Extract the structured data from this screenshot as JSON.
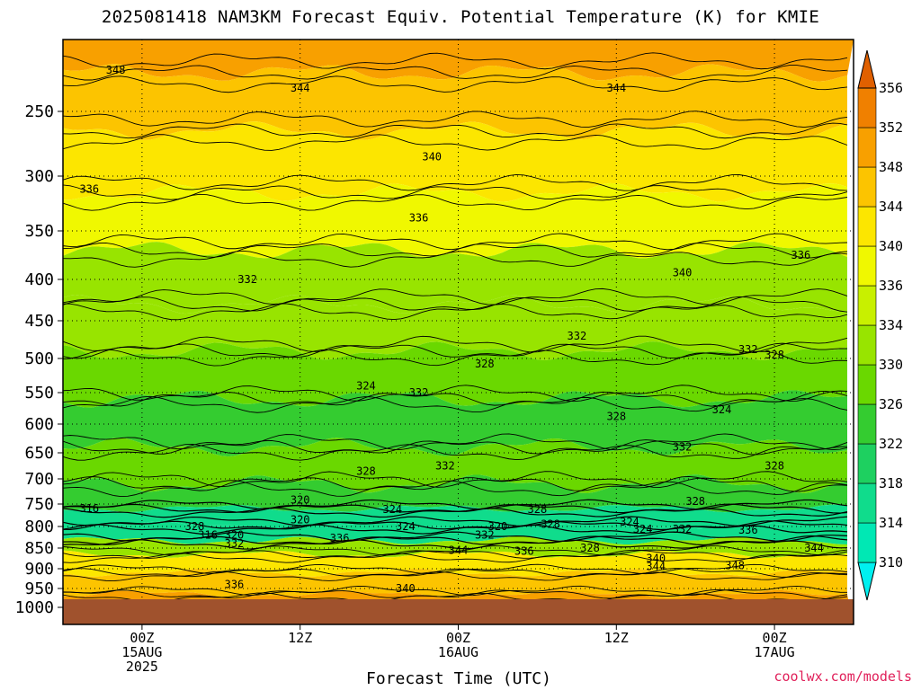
{
  "title": "2025081418 NAM3KM Forecast Equiv. Potential Temperature (K) for KMIE",
  "credit": "coolwx.com/models",
  "chart_data": {
    "type": "heatmap",
    "title": "2025081418 NAM3KM Forecast Equiv. Potential Temperature (K) for KMIE",
    "xlabel": "Forecast Time (UTC)",
    "ylabel": "",
    "y_scale": "pressure (mb), top 200, bottom 1000",
    "y_ticks": [
      250,
      300,
      350,
      400,
      450,
      500,
      550,
      600,
      650,
      700,
      750,
      800,
      850,
      900,
      950,
      1000
    ],
    "x_ticks": [
      {
        "hour": 6,
        "lines": [
          "00Z",
          "15AUG",
          "2025"
        ]
      },
      {
        "hour": 18,
        "lines": [
          "12Z"
        ]
      },
      {
        "hour": 30,
        "lines": [
          "00Z",
          "16AUG"
        ]
      },
      {
        "hour": 42,
        "lines": [
          "12Z"
        ]
      },
      {
        "hour": 54,
        "lines": [
          "00Z",
          "17AUG"
        ]
      }
    ],
    "x_range_hours": [
      0,
      60
    ],
    "colorbar": {
      "levels": [
        310,
        314,
        318,
        322,
        326,
        330,
        334,
        336,
        340,
        344,
        348,
        352,
        356
      ],
      "colors": [
        "#00f0f0",
        "#00e8b4",
        "#10dc8c",
        "#1ed060",
        "#34cc30",
        "#6ad800",
        "#98e400",
        "#c8f000",
        "#f0f800",
        "#fce600",
        "#fcc400",
        "#f8a000",
        "#f08000",
        "#e06000"
      ]
    },
    "ground_color": "#a0522d",
    "layers": [
      {
        "p": 200,
        "theta": 350
      },
      {
        "p": 240,
        "theta": 346
      },
      {
        "p": 290,
        "theta": 341
      },
      {
        "p": 340,
        "theta": 337
      },
      {
        "p": 400,
        "theta": 333
      },
      {
        "p": 460,
        "theta": 330
      },
      {
        "p": 520,
        "theta": 327
      },
      {
        "p": 600,
        "theta": 325
      },
      {
        "p": 680,
        "theta": 327
      },
      {
        "p": 740,
        "theta": 322
      },
      {
        "p": 780,
        "theta": 317
      },
      {
        "p": 815,
        "theta": 316
      },
      {
        "p": 850,
        "theta": 332
      },
      {
        "p": 880,
        "theta": 342
      },
      {
        "p": 940,
        "theta": 346
      },
      {
        "p": 990,
        "theta": 350
      }
    ],
    "contour_labels": [
      {
        "hour": 4,
        "p": 218,
        "v": "348"
      },
      {
        "hour": 18,
        "p": 232,
        "v": "344"
      },
      {
        "hour": 42,
        "p": 232,
        "v": "344"
      },
      {
        "hour": 28,
        "p": 285,
        "v": "340"
      },
      {
        "hour": 2,
        "p": 312,
        "v": "336"
      },
      {
        "hour": 27,
        "p": 338,
        "v": "336"
      },
      {
        "hour": 56,
        "p": 375,
        "v": "336"
      },
      {
        "hour": 47,
        "p": 393,
        "v": "340"
      },
      {
        "hour": 14,
        "p": 400,
        "v": "332"
      },
      {
        "hour": 39,
        "p": 470,
        "v": "332"
      },
      {
        "hour": 52,
        "p": 488,
        "v": "332"
      },
      {
        "hour": 61,
        "p": 488,
        "v": "332"
      },
      {
        "hour": 32,
        "p": 508,
        "v": "328"
      },
      {
        "hour": 54,
        "p": 495,
        "v": "328"
      },
      {
        "hour": 23,
        "p": 540,
        "v": "324"
      },
      {
        "hour": 27,
        "p": 550,
        "v": "332"
      },
      {
        "hour": 50,
        "p": 577,
        "v": "324"
      },
      {
        "hour": 42,
        "p": 588,
        "v": "328"
      },
      {
        "hour": 47,
        "p": 640,
        "v": "332"
      },
      {
        "hour": 23,
        "p": 685,
        "v": "328"
      },
      {
        "hour": 29,
        "p": 675,
        "v": "332"
      },
      {
        "hour": 54,
        "p": 675,
        "v": "328"
      },
      {
        "hour": 2,
        "p": 760,
        "v": "316"
      },
      {
        "hour": 18,
        "p": 742,
        "v": "320"
      },
      {
        "hour": 25,
        "p": 762,
        "v": "324"
      },
      {
        "hour": 36,
        "p": 762,
        "v": "328"
      },
      {
        "hour": 48,
        "p": 745,
        "v": "328"
      },
      {
        "hour": 18,
        "p": 785,
        "v": "320"
      },
      {
        "hour": 10,
        "p": 800,
        "v": "328"
      },
      {
        "hour": 26,
        "p": 800,
        "v": "324"
      },
      {
        "hour": 33,
        "p": 800,
        "v": "320"
      },
      {
        "hour": 37,
        "p": 795,
        "v": "328"
      },
      {
        "hour": 43,
        "p": 790,
        "v": "324"
      },
      {
        "hour": 11,
        "p": 820,
        "v": "316"
      },
      {
        "hour": 13,
        "p": 820,
        "v": "320"
      },
      {
        "hour": 21,
        "p": 827,
        "v": "336"
      },
      {
        "hour": 32,
        "p": 820,
        "v": "332"
      },
      {
        "hour": 44,
        "p": 806,
        "v": "324"
      },
      {
        "hour": 47,
        "p": 806,
        "v": "332"
      },
      {
        "hour": 52,
        "p": 808,
        "v": "336"
      },
      {
        "hour": 13,
        "p": 840,
        "v": "332"
      },
      {
        "hour": 30,
        "p": 855,
        "v": "344"
      },
      {
        "hour": 35,
        "p": 858,
        "v": "336"
      },
      {
        "hour": 40,
        "p": 850,
        "v": "328"
      },
      {
        "hour": 45,
        "p": 875,
        "v": "340"
      },
      {
        "hour": 45,
        "p": 895,
        "v": "344"
      },
      {
        "hour": 51,
        "p": 892,
        "v": "348"
      },
      {
        "hour": 57,
        "p": 850,
        "v": "344"
      },
      {
        "hour": 13,
        "p": 940,
        "v": "336"
      },
      {
        "hour": 26,
        "p": 950,
        "v": "340"
      }
    ]
  }
}
